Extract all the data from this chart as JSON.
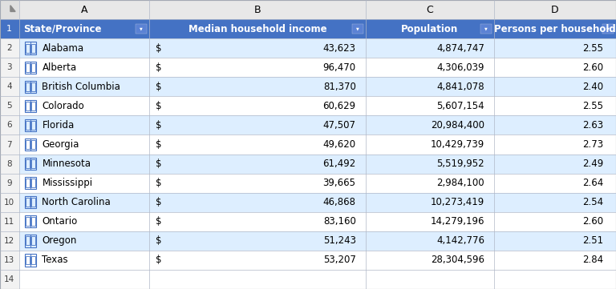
{
  "states": [
    "Alabama",
    "Alberta",
    "British Columbia",
    "Colorado",
    "Florida",
    "Georgia",
    "Minnesota",
    "Mississippi",
    "North Carolina",
    "Ontario",
    "Oregon",
    "Texas"
  ],
  "income": [
    "43,623",
    "96,470",
    "81,370",
    "60,629",
    "47,507",
    "49,620",
    "61,492",
    "39,665",
    "46,868",
    "83,160",
    "51,243",
    "53,207"
  ],
  "population": [
    "4,874,747",
    "4,306,039",
    "4,841,078",
    "5,607,154",
    "20,984,400",
    "10,429,739",
    "5,519,952",
    "2,984,100",
    "10,273,419",
    "14,279,196",
    "4,142,776",
    "28,304,596"
  ],
  "persons": [
    "2.55",
    "2.60",
    "2.40",
    "2.55",
    "2.63",
    "2.73",
    "2.49",
    "2.64",
    "2.54",
    "2.60",
    "2.51",
    "2.84"
  ],
  "header_bg": "#4472C4",
  "header_fg": "#FFFFFF",
  "stripe_bg": "#DDEEFF",
  "white_bg": "#FFFFFF",
  "row_fg": "#000000",
  "col_letter_bg": "#E8E8E8",
  "col_letter_fg": "#000000",
  "rownum_bg": "#F2F2F2",
  "rownum_fg": "#404040",
  "grid_color": "#B0B8C8",
  "corner_bg": "#E0E0E0",
  "icon_color": "#4472C4",
  "fig_w": 7.68,
  "fig_h": 3.61,
  "font_size": 8.5
}
